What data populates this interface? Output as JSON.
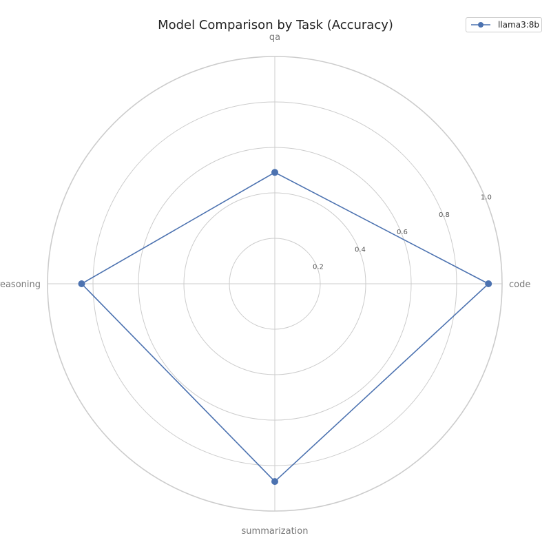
{
  "chart_data": {
    "type": "radar",
    "title": "Model Comparison by Task (Accuracy)",
    "categories": [
      "code",
      "qa",
      "reasoning",
      "summarization"
    ],
    "series": [
      {
        "name": "llama3:8b",
        "values": [
          0.94,
          0.49,
          0.85,
          0.87
        ]
      }
    ],
    "radial_ticks": [
      "0.2",
      "0.4",
      "0.6",
      "0.8",
      "1.0"
    ],
    "radial_tick_values": [
      0.2,
      0.4,
      0.6,
      0.8,
      1.0
    ],
    "rlim": [
      0,
      1.0
    ],
    "grid": true,
    "legend_position": "top-right"
  },
  "colors": {
    "series": "#4c72b0",
    "grid": "#cccccc",
    "category_label": "#777777",
    "tick_label": "#555555"
  }
}
